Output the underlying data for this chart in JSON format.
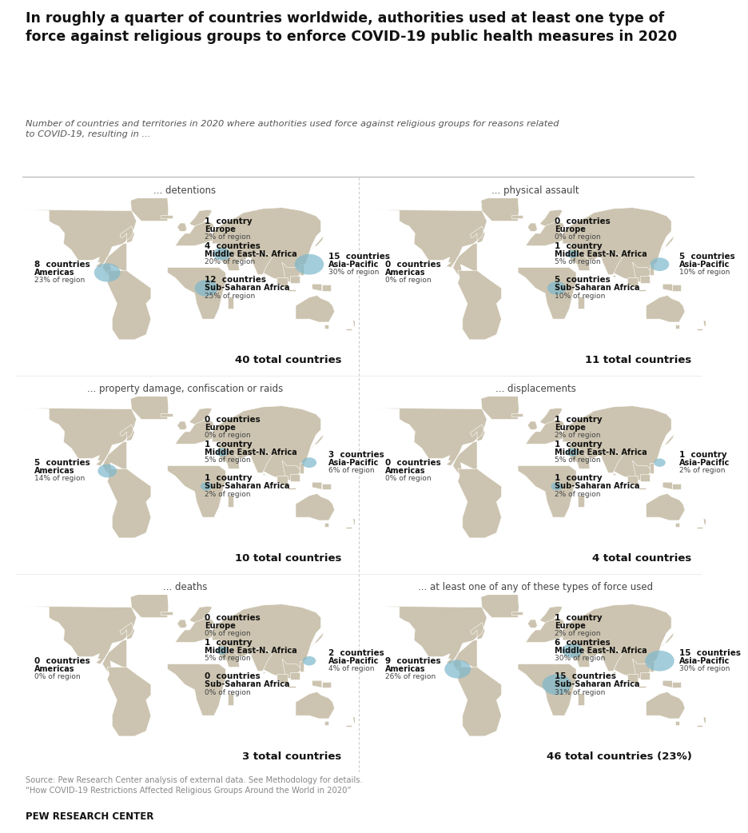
{
  "title": "In roughly a quarter of countries worldwide, authorities used at least one type of\nforce against religious groups to enforce COVID-19 public health measures in 2020",
  "subtitle": "Number of countries and territories in 2020 where authorities used force against religious groups for reasons related\nto COVID-19, resulting in ...",
  "source": "Source: Pew Research Center analysis of external data. See Methodology for details.\n“How COVID-19 Restrictions Affected Religious Groups Around the World in 2020”",
  "branding": "PEW RESEARCH CENTER",
  "bg": "#ffffff",
  "map_land": "#ccc4b0",
  "map_water": "#e8e3d8",
  "bubble_color": "#7db8cc",
  "divider_color": "#aaaaaa",
  "panels": [
    {
      "title": "... detentions",
      "total": "40 total countries",
      "regions": [
        {
          "name": "Americas",
          "num": "8",
          "unit": "countries",
          "pct": "23% of region",
          "lon": -80,
          "lat": 10,
          "size": 18,
          "text_side": "left"
        },
        {
          "name": "Europe",
          "num": "1",
          "unit": "country",
          "pct": "2% of region",
          "lon": 18,
          "lat": 52,
          "size": 0,
          "text_side": "right"
        },
        {
          "name": "Middle East-N. Africa",
          "num": "4",
          "unit": "countries",
          "pct": "20% of region",
          "lon": 38,
          "lat": 28,
          "size": 12,
          "text_side": "right"
        },
        {
          "name": "Sub-Saharan Africa",
          "num": "12",
          "unit": "countries",
          "pct": "25% of region",
          "lon": 22,
          "lat": -5,
          "size": 16,
          "text_side": "right"
        },
        {
          "name": "Asia-Pacific",
          "num": "15",
          "unit": "countries",
          "pct": "30% of region",
          "lon": 128,
          "lat": 18,
          "size": 20,
          "text_side": "right"
        }
      ]
    },
    {
      "title": "... physical assault",
      "total": "11 total countries",
      "regions": [
        {
          "name": "Americas",
          "num": "0",
          "unit": "countries",
          "pct": "0% of region",
          "lon": -80,
          "lat": 10,
          "size": 0,
          "text_side": "left"
        },
        {
          "name": "Europe",
          "num": "0",
          "unit": "countries",
          "pct": "0% of region",
          "lon": 18,
          "lat": 52,
          "size": 0,
          "text_side": "right"
        },
        {
          "name": "Middle East-N. Africa",
          "num": "1",
          "unit": "country",
          "pct": "5% of region",
          "lon": 38,
          "lat": 28,
          "size": 8,
          "text_side": "right"
        },
        {
          "name": "Sub-Saharan Africa",
          "num": "5",
          "unit": "countries",
          "pct": "10% of region",
          "lon": 22,
          "lat": -5,
          "size": 13,
          "text_side": "right"
        },
        {
          "name": "Asia-Pacific",
          "num": "5",
          "unit": "countries",
          "pct": "10% of region",
          "lon": 128,
          "lat": 18,
          "size": 13,
          "text_side": "right"
        }
      ]
    },
    {
      "title": "... property damage, confiscation or raids",
      "total": "10 total countries",
      "regions": [
        {
          "name": "Americas",
          "num": "5",
          "unit": "countries",
          "pct": "14% of region",
          "lon": -80,
          "lat": 10,
          "size": 13,
          "text_side": "left"
        },
        {
          "name": "Europe",
          "num": "0",
          "unit": "countries",
          "pct": "0% of region",
          "lon": 18,
          "lat": 52,
          "size": 0,
          "text_side": "right"
        },
        {
          "name": "Middle East-N. Africa",
          "num": "1",
          "unit": "country",
          "pct": "5% of region",
          "lon": 38,
          "lat": 28,
          "size": 8,
          "text_side": "right"
        },
        {
          "name": "Sub-Saharan Africa",
          "num": "1",
          "unit": "country",
          "pct": "2% of region",
          "lon": 22,
          "lat": -5,
          "size": 8,
          "text_side": "right"
        },
        {
          "name": "Asia-Pacific",
          "num": "3",
          "unit": "countries",
          "pct": "6% of region",
          "lon": 128,
          "lat": 18,
          "size": 10,
          "text_side": "right"
        }
      ]
    },
    {
      "title": "... displacements",
      "total": "4 total countries",
      "regions": [
        {
          "name": "Americas",
          "num": "0",
          "unit": "countries",
          "pct": "0% of region",
          "lon": -80,
          "lat": 10,
          "size": 0,
          "text_side": "left"
        },
        {
          "name": "Europe",
          "num": "1",
          "unit": "country",
          "pct": "2% of region",
          "lon": 18,
          "lat": 52,
          "size": 0,
          "text_side": "right"
        },
        {
          "name": "Middle East-N. Africa",
          "num": "1",
          "unit": "country",
          "pct": "5% of region",
          "lon": 38,
          "lat": 28,
          "size": 8,
          "text_side": "right"
        },
        {
          "name": "Sub-Saharan Africa",
          "num": "1",
          "unit": "country",
          "pct": "2% of region",
          "lon": 22,
          "lat": -5,
          "size": 8,
          "text_side": "right"
        },
        {
          "name": "Asia-Pacific",
          "num": "1",
          "unit": "country",
          "pct": "2% of region",
          "lon": 128,
          "lat": 18,
          "size": 8,
          "text_side": "right"
        }
      ]
    },
    {
      "title": "... deaths",
      "total": "3 total countries",
      "regions": [
        {
          "name": "Americas",
          "num": "0",
          "unit": "countries",
          "pct": "0% of region",
          "lon": -80,
          "lat": 10,
          "size": 0,
          "text_side": "left"
        },
        {
          "name": "Europe",
          "num": "0",
          "unit": "countries",
          "pct": "0% of region",
          "lon": 18,
          "lat": 52,
          "size": 0,
          "text_side": "right"
        },
        {
          "name": "Middle East-N. Africa",
          "num": "1",
          "unit": "country",
          "pct": "5% of region",
          "lon": 38,
          "lat": 28,
          "size": 8,
          "text_side": "right"
        },
        {
          "name": "Sub-Saharan Africa",
          "num": "0",
          "unit": "countries",
          "pct": "0% of region",
          "lon": 22,
          "lat": -5,
          "size": 0,
          "text_side": "right"
        },
        {
          "name": "Asia-Pacific",
          "num": "2",
          "unit": "countries",
          "pct": "4% of region",
          "lon": 128,
          "lat": 18,
          "size": 9,
          "text_side": "right"
        }
      ]
    },
    {
      "title": "... at least one of any of these types of force used",
      "total": "46 total countries (23%)",
      "regions": [
        {
          "name": "Americas",
          "num": "9",
          "unit": "countries",
          "pct": "26% of region",
          "lon": -80,
          "lat": 10,
          "size": 18,
          "text_side": "left"
        },
        {
          "name": "Europe",
          "num": "1",
          "unit": "country",
          "pct": "2% of region",
          "lon": 18,
          "lat": 52,
          "size": 0,
          "text_side": "right"
        },
        {
          "name": "Middle East-N. Africa",
          "num": "6",
          "unit": "countries",
          "pct": "30% of region",
          "lon": 38,
          "lat": 28,
          "size": 14,
          "text_side": "right"
        },
        {
          "name": "Sub-Saharan Africa",
          "num": "15",
          "unit": "countries",
          "pct": "31% of region",
          "lon": 22,
          "lat": -5,
          "size": 20,
          "text_side": "right"
        },
        {
          "name": "Asia-Pacific",
          "num": "15",
          "unit": "countries",
          "pct": "30% of region",
          "lon": 128,
          "lat": 18,
          "size": 20,
          "text_side": "right"
        }
      ]
    }
  ]
}
